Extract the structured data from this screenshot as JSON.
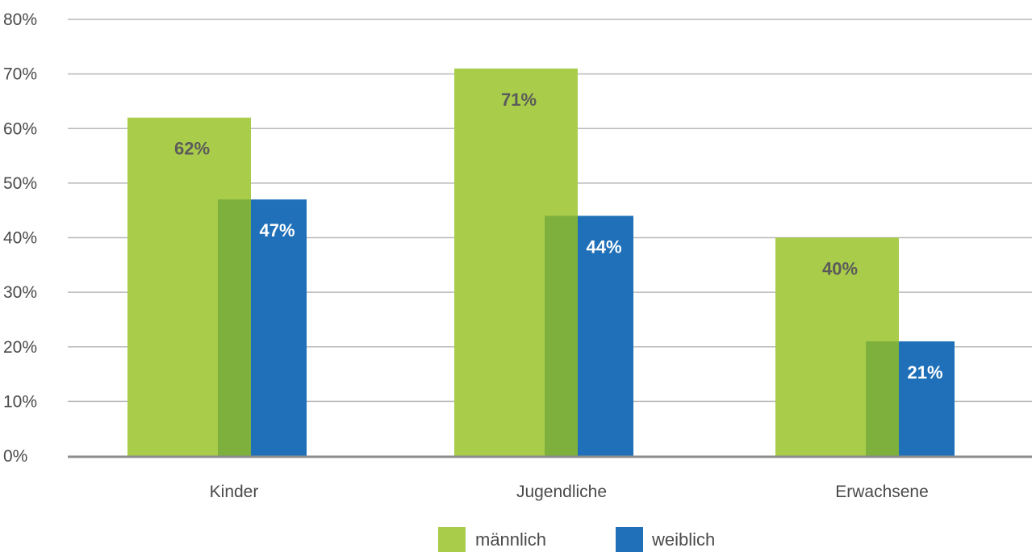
{
  "chart_data": {
    "type": "bar",
    "categories": [
      "Kinder",
      "Jugendliche",
      "Erwachsene"
    ],
    "series": [
      {
        "name": "männlich",
        "values": [
          62,
          71,
          40
        ],
        "labels": [
          "62%",
          "71%",
          "40%"
        ],
        "color": "#a9cd4a",
        "overlap_color": "#7db03c",
        "label_color": "#5b5b5b"
      },
      {
        "name": "weiblich",
        "values": [
          47,
          44,
          21
        ],
        "labels": [
          "47%",
          "44%",
          "21%"
        ],
        "color": "#1f70b8",
        "label_color": "#ffffff"
      }
    ],
    "ylim": [
      0,
      80
    ],
    "yticks": [
      0,
      10,
      20,
      30,
      40,
      50,
      60,
      70,
      80
    ],
    "ytick_labels": [
      "0%",
      "10%",
      "20%",
      "30%",
      "40%",
      "50%",
      "60%",
      "70%",
      "80%"
    ],
    "title": "",
    "xlabel": "",
    "ylabel": "",
    "grid": true,
    "legend_position": "bottom-center",
    "colors": {
      "grid": "#b9b9b9",
      "axis": "#8c8c8c"
    }
  }
}
